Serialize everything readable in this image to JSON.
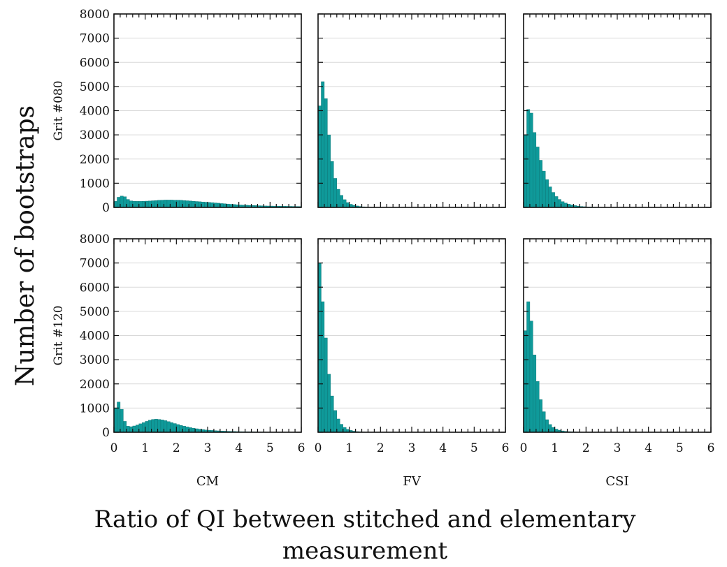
{
  "chart_data": {
    "type": "bar",
    "title": "",
    "ylabel": "Number of bootstraps",
    "xlabel_lines": [
      "Ratio of QI between stitched and elementary",
      "measurement"
    ],
    "xlim": [
      0,
      6
    ],
    "ylim": [
      0,
      8000
    ],
    "xticks": [
      "0",
      "1",
      "2",
      "3",
      "4",
      "5",
      "6"
    ],
    "yticks": [
      "0",
      "1000",
      "2000",
      "3000",
      "4000",
      "5000",
      "6000",
      "7000",
      "8000"
    ],
    "grid": true,
    "bar_color": "#0f9a9a",
    "bin_width": 0.1,
    "columns": [
      "CM",
      "FV",
      "CSI"
    ],
    "rows": [
      "Grit #080",
      "Grit #120"
    ],
    "panels": [
      {
        "row": "Grit #080",
        "column": "CM",
        "bin_start": [
          0,
          0.1,
          0.2,
          0.3,
          0.4,
          0.5,
          0.6,
          0.7,
          0.8,
          0.9,
          1.0,
          1.1,
          1.2,
          1.3,
          1.4,
          1.5,
          1.6,
          1.7,
          1.8,
          1.9,
          2.0,
          2.1,
          2.2,
          2.3,
          2.4,
          2.5,
          2.6,
          2.7,
          2.8,
          2.9,
          3.0,
          3.1,
          3.2,
          3.3,
          3.4,
          3.5,
          3.6,
          3.7,
          3.8,
          3.9,
          4.0,
          4.1,
          4.2,
          4.3,
          4.4,
          4.5,
          4.6,
          4.7,
          4.8,
          4.9,
          5.0,
          5.1,
          5.2,
          5.3,
          5.4,
          5.5,
          5.6,
          5.7,
          5.8,
          5.9
        ],
        "counts": [
          250,
          420,
          470,
          440,
          330,
          270,
          255,
          250,
          250,
          255,
          260,
          265,
          275,
          285,
          295,
          300,
          305,
          305,
          305,
          300,
          300,
          295,
          285,
          275,
          265,
          255,
          245,
          235,
          225,
          215,
          205,
          195,
          185,
          175,
          160,
          150,
          140,
          130,
          120,
          110,
          100,
          95,
          90,
          85,
          80,
          75,
          70,
          65,
          60,
          58,
          56,
          54,
          52,
          50,
          48,
          46,
          44,
          42,
          40,
          38
        ]
      },
      {
        "row": "Grit #080",
        "column": "FV",
        "bin_start": [
          0,
          0.1,
          0.2,
          0.3,
          0.4,
          0.5,
          0.6,
          0.7,
          0.8,
          0.9,
          1.0,
          1.1,
          1.2,
          1.3,
          1.4,
          1.5,
          1.6,
          1.7,
          1.8,
          1.9,
          2.0,
          2.1,
          2.2,
          2.3,
          2.4,
          2.5,
          2.6,
          2.7,
          2.8,
          2.9,
          3.0,
          3.1,
          3.2,
          3.3,
          3.4,
          3.5,
          3.6,
          3.7,
          3.8,
          3.9,
          4.0,
          4.1,
          4.2,
          4.3,
          4.4,
          4.5,
          4.6,
          4.7,
          4.8,
          4.9,
          5.0,
          5.1,
          5.2,
          5.3,
          5.4,
          5.5,
          5.6,
          5.7,
          5.8,
          5.9
        ],
        "counts": [
          4200,
          5200,
          4500,
          3000,
          1900,
          1200,
          750,
          500,
          320,
          200,
          130,
          90,
          60,
          40,
          25,
          15,
          10,
          8,
          6,
          5,
          4,
          3,
          3,
          2,
          2,
          2,
          1,
          1,
          1,
          1,
          1,
          1,
          1,
          1,
          1,
          1,
          1,
          1,
          1,
          1,
          1,
          1,
          1,
          1,
          1,
          1,
          1,
          1,
          1,
          1,
          1,
          1,
          1,
          1,
          1,
          1,
          1,
          1,
          1,
          1
        ]
      },
      {
        "row": "Grit #080",
        "column": "CSI",
        "bin_start": [
          0,
          0.1,
          0.2,
          0.3,
          0.4,
          0.5,
          0.6,
          0.7,
          0.8,
          0.9,
          1.0,
          1.1,
          1.2,
          1.3,
          1.4,
          1.5,
          1.6,
          1.7,
          1.8,
          1.9,
          2.0,
          2.1,
          2.2,
          2.3,
          2.4,
          2.5,
          2.6,
          2.7,
          2.8,
          2.9,
          3.0,
          3.1,
          3.2,
          3.3,
          3.4,
          3.5,
          3.6,
          3.7,
          3.8,
          3.9,
          4.0,
          4.1,
          4.2,
          4.3,
          4.4,
          4.5,
          4.6,
          4.7,
          4.8,
          4.9,
          5.0,
          5.1,
          5.2,
          5.3,
          5.4,
          5.5,
          5.6,
          5.7,
          5.8,
          5.9
        ],
        "counts": [
          3000,
          4050,
          3900,
          3100,
          2500,
          1950,
          1500,
          1150,
          850,
          620,
          450,
          330,
          240,
          180,
          135,
          100,
          75,
          55,
          40,
          30,
          22,
          18,
          14,
          10,
          8,
          6,
          5,
          4,
          3,
          3,
          2,
          2,
          2,
          1,
          1,
          1,
          1,
          1,
          1,
          1,
          1,
          1,
          1,
          1,
          1,
          1,
          1,
          1,
          1,
          1,
          1,
          1,
          1,
          1,
          1,
          1,
          1,
          1,
          1,
          1
        ]
      },
      {
        "row": "Grit #120",
        "column": "CM",
        "bin_start": [
          0,
          0.1,
          0.2,
          0.3,
          0.4,
          0.5,
          0.6,
          0.7,
          0.8,
          0.9,
          1.0,
          1.1,
          1.2,
          1.3,
          1.4,
          1.5,
          1.6,
          1.7,
          1.8,
          1.9,
          2.0,
          2.1,
          2.2,
          2.3,
          2.4,
          2.5,
          2.6,
          2.7,
          2.8,
          2.9,
          3.0,
          3.1,
          3.2,
          3.3,
          3.4,
          3.5,
          3.6,
          3.7,
          3.8,
          3.9,
          4.0,
          4.1,
          4.2,
          4.3,
          4.4,
          4.5,
          4.6,
          4.7,
          4.8,
          4.9,
          5.0,
          5.1,
          5.2,
          5.3,
          5.4,
          5.5,
          5.6,
          5.7,
          5.8,
          5.9
        ],
        "counts": [
          1000,
          1250,
          950,
          450,
          250,
          230,
          260,
          300,
          350,
          400,
          450,
          500,
          530,
          540,
          530,
          510,
          480,
          440,
          400,
          360,
          320,
          280,
          250,
          220,
          190,
          165,
          145,
          125,
          110,
          95,
          85,
          75,
          65,
          58,
          52,
          46,
          40,
          36,
          32,
          28,
          25,
          22,
          20,
          18,
          16,
          14,
          12,
          11,
          10,
          9,
          8,
          7,
          6,
          6,
          5,
          5,
          4,
          4,
          3,
          3
        ]
      },
      {
        "row": "Grit #120",
        "column": "FV",
        "bin_start": [
          0,
          0.1,
          0.2,
          0.3,
          0.4,
          0.5,
          0.6,
          0.7,
          0.8,
          0.9,
          1.0,
          1.1,
          1.2,
          1.3,
          1.4,
          1.5,
          1.6,
          1.7,
          1.8,
          1.9,
          2.0,
          2.1,
          2.2,
          2.3,
          2.4,
          2.5,
          2.6,
          2.7,
          2.8,
          2.9,
          3.0,
          3.1,
          3.2,
          3.3,
          3.4,
          3.5,
          3.6,
          3.7,
          3.8,
          3.9,
          4.0,
          4.1,
          4.2,
          4.3,
          4.4,
          4.5,
          4.6,
          4.7,
          4.8,
          4.9,
          5.0,
          5.1,
          5.2,
          5.3,
          5.4,
          5.5,
          5.6,
          5.7,
          5.8,
          5.9
        ],
        "counts": [
          7000,
          5400,
          3900,
          2400,
          1500,
          900,
          550,
          330,
          200,
          120,
          75,
          45,
          28,
          18,
          12,
          8,
          5,
          4,
          3,
          2,
          2,
          1,
          1,
          1,
          1,
          1,
          1,
          1,
          1,
          1,
          1,
          1,
          1,
          1,
          1,
          1,
          1,
          1,
          1,
          1,
          1,
          1,
          1,
          1,
          1,
          1,
          1,
          1,
          1,
          1,
          1,
          1,
          1,
          1,
          1,
          1,
          1,
          1,
          1,
          1
        ]
      },
      {
        "row": "Grit #120",
        "column": "CSI",
        "bin_start": [
          0,
          0.1,
          0.2,
          0.3,
          0.4,
          0.5,
          0.6,
          0.7,
          0.8,
          0.9,
          1.0,
          1.1,
          1.2,
          1.3,
          1.4,
          1.5,
          1.6,
          1.7,
          1.8,
          1.9,
          2.0,
          2.1,
          2.2,
          2.3,
          2.4,
          2.5,
          2.6,
          2.7,
          2.8,
          2.9,
          3.0,
          3.1,
          3.2,
          3.3,
          3.4,
          3.5,
          3.6,
          3.7,
          3.8,
          3.9,
          4.0,
          4.1,
          4.2,
          4.3,
          4.4,
          4.5,
          4.6,
          4.7,
          4.8,
          4.9,
          5.0,
          5.1,
          5.2,
          5.3,
          5.4,
          5.5,
          5.6,
          5.7,
          5.8,
          5.9
        ],
        "counts": [
          4200,
          5400,
          4600,
          3200,
          2100,
          1350,
          850,
          520,
          320,
          200,
          130,
          85,
          55,
          38,
          26,
          18,
          13,
          9,
          7,
          5,
          4,
          3,
          3,
          2,
          2,
          2,
          1,
          1,
          1,
          1,
          1,
          1,
          1,
          1,
          1,
          1,
          1,
          1,
          1,
          1,
          1,
          1,
          1,
          1,
          1,
          1,
          1,
          1,
          1,
          1,
          1,
          1,
          1,
          1,
          1,
          1,
          1,
          1,
          1,
          1
        ]
      }
    ]
  }
}
